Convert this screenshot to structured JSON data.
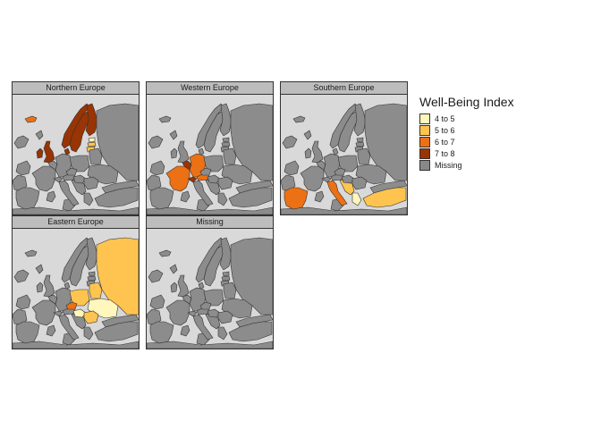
{
  "legend": {
    "title": "Well-Being Index",
    "items": [
      {
        "label": "4 to 5",
        "color": "#fff7bc"
      },
      {
        "label": "5 to 6",
        "color": "#fec44f"
      },
      {
        "label": "6 to 7",
        "color": "#ec7014"
      },
      {
        "label": "7 to 8",
        "color": "#993404"
      },
      {
        "label": "Missing",
        "color": "#888888"
      }
    ]
  },
  "colors": {
    "sea": "#d9d9d9",
    "land": "#8c8c8c",
    "border": "#333333"
  },
  "panels": [
    {
      "title": "Northern Europe",
      "highlight": [
        {
          "region": "iceland",
          "class": "6 to 7"
        },
        {
          "region": "ireland",
          "class": "7 to 8"
        },
        {
          "region": "britain",
          "class": "7 to 8"
        },
        {
          "region": "norway",
          "class": "7 to 8"
        },
        {
          "region": "sweden",
          "class": "7 to 8"
        },
        {
          "region": "finland",
          "class": "7 to 8"
        },
        {
          "region": "denmark",
          "class": "7 to 8"
        },
        {
          "region": "estonia",
          "class": "4 to 5"
        },
        {
          "region": "latvia",
          "class": "5 to 6"
        },
        {
          "region": "lithuania",
          "class": "5 to 6"
        }
      ]
    },
    {
      "title": "Western Europe",
      "highlight": [
        {
          "region": "france",
          "class": "6 to 7"
        },
        {
          "region": "germany",
          "class": "6 to 7"
        },
        {
          "region": "benelux",
          "class": "7 to 8"
        },
        {
          "region": "switzerland",
          "class": "7 to 8"
        },
        {
          "region": "austria",
          "class": "6 to 7"
        }
      ]
    },
    {
      "title": "Southern Europe",
      "highlight": [
        {
          "region": "iberia",
          "class": "6 to 7"
        },
        {
          "region": "italy",
          "class": "6 to 7"
        },
        {
          "region": "balkans",
          "class": "5 to 6"
        },
        {
          "region": "greece",
          "class": "4 to 5"
        },
        {
          "region": "turkey",
          "class": "5 to 6"
        }
      ]
    },
    {
      "title": "Eastern Europe",
      "highlight": [
        {
          "region": "russia",
          "class": "5 to 6"
        },
        {
          "region": "poland",
          "class": "5 to 6"
        },
        {
          "region": "belarus",
          "class": "5 to 6"
        },
        {
          "region": "ukraine",
          "class": "4 to 5"
        },
        {
          "region": "czech",
          "class": "6 to 7"
        },
        {
          "region": "hungary",
          "class": "4 to 5"
        },
        {
          "region": "romania",
          "class": "5 to 6"
        }
      ]
    },
    {
      "title": "Missing",
      "highlight": []
    }
  ]
}
